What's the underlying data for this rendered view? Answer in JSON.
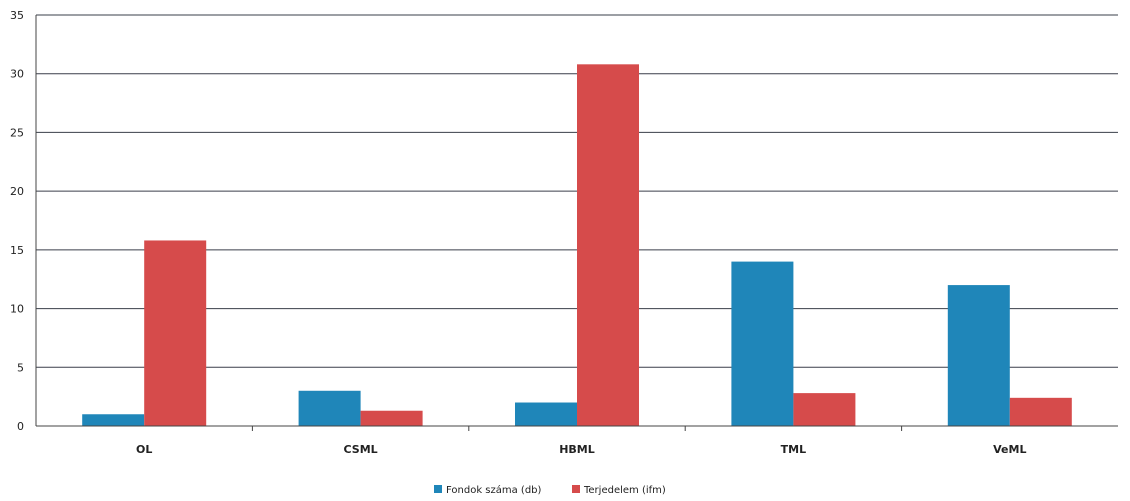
{
  "chart_data": {
    "type": "bar",
    "categories": [
      "OL",
      "CSML",
      "HBML",
      "TML",
      "VeML"
    ],
    "series": [
      {
        "name": "Fondok száma (db)",
        "values": [
          1,
          3,
          2,
          14,
          12
        ],
        "color": "#1f86b9"
      },
      {
        "name": "Terjedelem (ifm)",
        "values": [
          15.8,
          1.3,
          30.8,
          2.8,
          2.4
        ],
        "color": "#d64b4b"
      }
    ],
    "ylim": [
      0,
      35
    ],
    "yticks": [
      0,
      5,
      10,
      15,
      20,
      25,
      30,
      35
    ],
    "grid": true,
    "legend_position": "bottom"
  }
}
